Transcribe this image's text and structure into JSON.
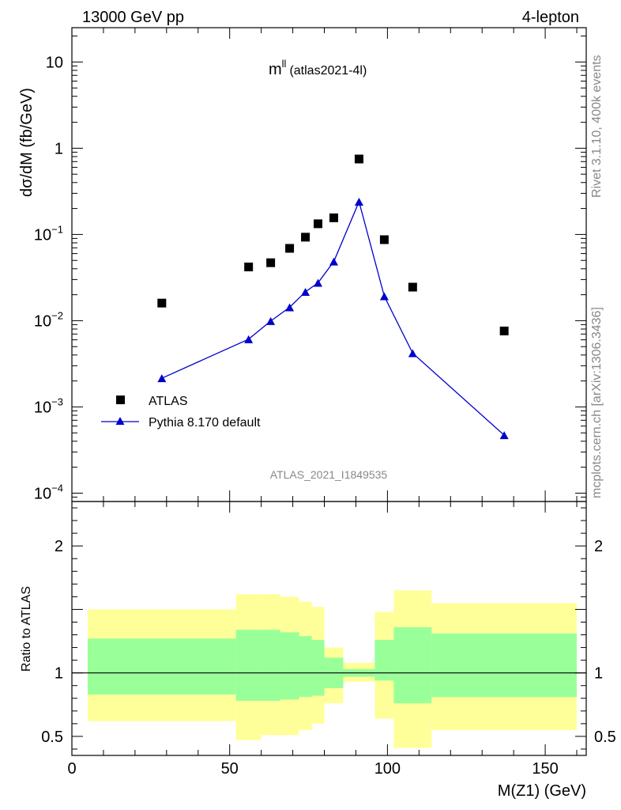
{
  "header": {
    "energy": "13000 GeV pp",
    "process": "4-lepton"
  },
  "side_text": {
    "rivet": "Rivet 3.1.10,  400k events",
    "mcplots": "mcplots.cern.ch [arXiv:1306.3436]"
  },
  "analysis_id": "ATLAS_2021_I1849535",
  "chart_data": [
    {
      "type": "scatter",
      "panel": "main",
      "title_main": "m",
      "title_sup": "ll",
      "title_tag": "(atlas2021-4l)",
      "ylabel": "dσ/dM (fb/GeV)",
      "yscale": "log",
      "ylim": [
        8e-05,
        25
      ],
      "xlim": [
        0,
        163
      ],
      "y_ticks": [
        {
          "value": 10,
          "label": "10"
        },
        {
          "value": 1,
          "label": "1"
        },
        {
          "value": 0.1,
          "base": "10",
          "exp": "−1"
        },
        {
          "value": 0.01,
          "base": "10",
          "exp": "−2"
        },
        {
          "value": 0.001,
          "base": "10",
          "exp": "−3"
        },
        {
          "value": 0.0001,
          "base": "10",
          "exp": "−4"
        }
      ],
      "legend_position": "bottom-left",
      "series": [
        {
          "name": "ATLAS",
          "marker": "square",
          "color": "#000000",
          "x": [
            28.5,
            56,
            63,
            69,
            74,
            78,
            83,
            91,
            99,
            108,
            137
          ],
          "y": [
            0.016,
            0.042,
            0.047,
            0.069,
            0.093,
            0.133,
            0.156,
            0.75,
            0.087,
            0.0245,
            0.0076
          ]
        },
        {
          "name": "Pythia 8.170 default",
          "marker": "triangle",
          "color": "#0000cc",
          "x": [
            28.5,
            56,
            63,
            69,
            74,
            78,
            83,
            91,
            99,
            108,
            137
          ],
          "y": [
            0.00215,
            0.0061,
            0.0099,
            0.0143,
            0.0216,
            0.0275,
            0.0485,
            0.24,
            0.0192,
            0.0042,
            0.00047
          ]
        }
      ]
    },
    {
      "type": "area",
      "panel": "ratio",
      "ylabel": "Ratio to ATLAS",
      "xlabel": "M(Z1) (GeV)",
      "yscale": "linear",
      "ylim": [
        0.35,
        2.35
      ],
      "xlim": [
        0,
        163
      ],
      "y_ticks": [
        {
          "value": 2,
          "label": "2"
        },
        {
          "value": 1,
          "label": "1"
        },
        {
          "value": 0.5,
          "label": "0.5"
        }
      ],
      "x_ticks": [
        {
          "value": 0,
          "label": "0"
        },
        {
          "value": 50,
          "label": "50"
        },
        {
          "value": 100,
          "label": "100"
        },
        {
          "value": 150,
          "label": "150"
        }
      ],
      "bin_edges": [
        5,
        52,
        60,
        66,
        72,
        76,
        80,
        86,
        96,
        102,
        114,
        160
      ],
      "stat_band": {
        "color": "#99ff99",
        "lo": [
          0.83,
          0.78,
          0.78,
          0.79,
          0.81,
          0.82,
          0.88,
          0.97,
          0.94,
          0.76,
          0.81
        ],
        "hi": [
          1.27,
          1.34,
          1.34,
          1.32,
          1.29,
          1.26,
          1.12,
          1.03,
          1.26,
          1.36,
          1.31
        ]
      },
      "total_band": {
        "color": "#ffff99",
        "lo": [
          0.62,
          0.47,
          0.51,
          0.51,
          0.55,
          0.6,
          0.76,
          0.93,
          0.64,
          0.41,
          0.55
        ],
        "hi": [
          1.5,
          1.62,
          1.62,
          1.6,
          1.56,
          1.52,
          1.2,
          1.08,
          1.48,
          1.65,
          1.55
        ]
      },
      "reference_line": 1
    }
  ]
}
